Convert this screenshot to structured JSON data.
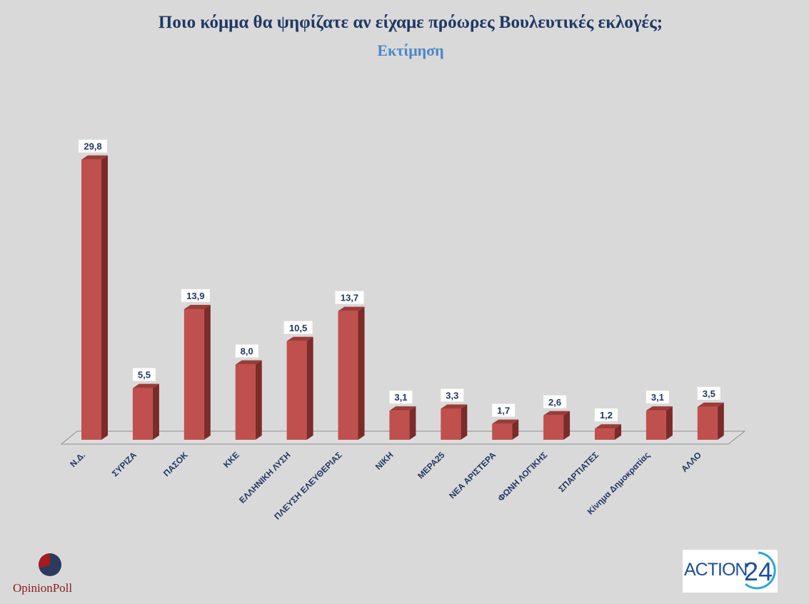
{
  "chart_data": {
    "type": "bar",
    "title": "Ποιο κόμμα θα ψηφίζατε αν είχαμε πρόωρες Βουλευτικές εκλογές;",
    "subtitle": "Εκτίμηση",
    "categories": [
      "Ν.Δ.",
      "ΣΥΡΙΖΑ",
      "ΠΑΣΟΚ",
      "ΚΚΕ",
      "ΕΛΛΗΝΙΚΗ ΛΥΣΗ",
      "ΠΛΕΥΣΗ ΕΛΕΥΘΕΡΙΑΣ",
      "ΝΙΚΗ",
      "ΜΕΡΑ25",
      "ΝΕΑ ΑΡΙΣΤΕΡΑ",
      "ΦΩΝΗ ΛΟΓΙΚΗΣ",
      "ΣΠΑΡΤΙΑΤΕΣ",
      "Κίνημα Δημοκρατίας",
      "ΑΛΛΟ"
    ],
    "values": [
      29.8,
      5.5,
      13.9,
      8.0,
      10.5,
      13.7,
      3.1,
      3.3,
      1.7,
      2.6,
      1.2,
      3.1,
      3.5
    ],
    "value_labels": [
      "29,8",
      "5,5",
      "13,9",
      "8,0",
      "10,5",
      "13,7",
      "3,1",
      "3,3",
      "1,7",
      "2,6",
      "1,2",
      "3,1",
      "3,5"
    ],
    "xlabel": "",
    "ylabel": "",
    "ylim": [
      0,
      30
    ],
    "grid": false,
    "legend": "none",
    "colors": {
      "bar_front": "#c0504d",
      "bar_side": "#7b2b29",
      "bar_top": "#9b3c39",
      "label_text": "#1f3864",
      "axis_label_text": "#1f3864"
    }
  },
  "logos": {
    "opinion_poll": "OpinionPoll",
    "action24_word": "ACTION",
    "action24_num": "24"
  }
}
